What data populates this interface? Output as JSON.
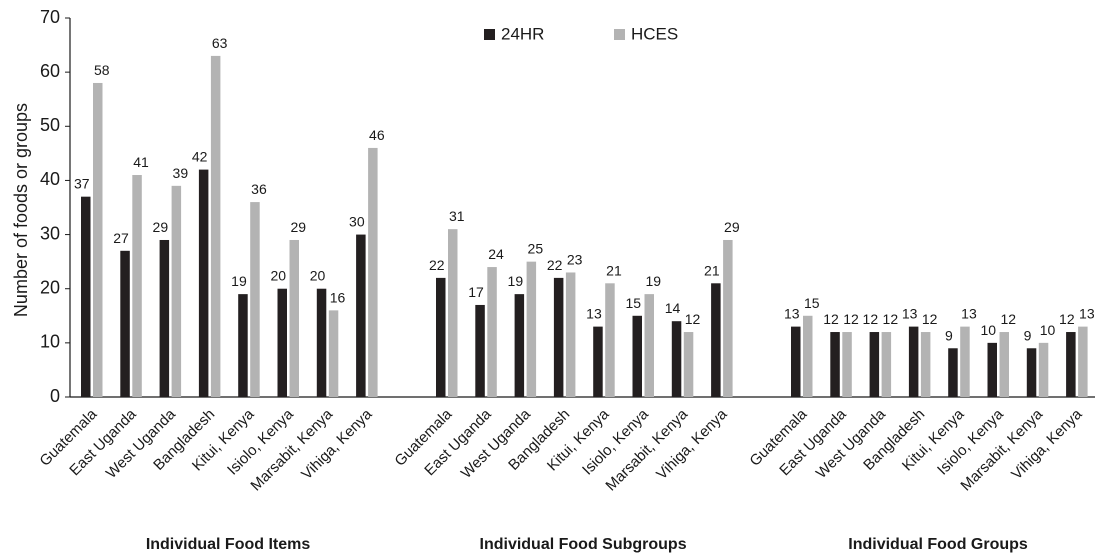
{
  "chart_data": {
    "type": "bar",
    "ylabel": "Number of foods or groups",
    "ylim": [
      0,
      70
    ],
    "yticks": [
      0,
      10,
      20,
      30,
      40,
      50,
      60,
      70
    ],
    "grid": false,
    "legend_position": "top-center",
    "colors": {
      "24HR": "#231f20",
      "HCES": "#b3b3b3"
    },
    "categories": [
      "Guatemala",
      "East Uganda",
      "West Uganda",
      "Bangladesh",
      "Kitui, Kenya",
      "Isiolo, Kenya",
      "Marsabit, Kenya",
      "Vihiga, Kenya"
    ],
    "series_names": [
      "24HR",
      "HCES"
    ],
    "groups": [
      {
        "name": "Individual Food Items",
        "series": [
          {
            "name": "24HR",
            "values": [
              37,
              27,
              29,
              42,
              19,
              20,
              20,
              30
            ]
          },
          {
            "name": "HCES",
            "values": [
              58,
              41,
              39,
              63,
              36,
              29,
              16,
              46
            ]
          }
        ]
      },
      {
        "name": "Individual Food Subgroups",
        "series": [
          {
            "name": "24HR",
            "values": [
              22,
              17,
              19,
              22,
              13,
              15,
              14,
              21
            ]
          },
          {
            "name": "HCES",
            "values": [
              31,
              24,
              25,
              23,
              21,
              19,
              12,
              29
            ]
          }
        ]
      },
      {
        "name": "Individual Food Groups",
        "series": [
          {
            "name": "24HR",
            "values": [
              13,
              12,
              12,
              13,
              9,
              10,
              9,
              12
            ]
          },
          {
            "name": "HCES",
            "values": [
              15,
              12,
              12,
              12,
              13,
              12,
              10,
              13
            ]
          }
        ]
      }
    ]
  }
}
